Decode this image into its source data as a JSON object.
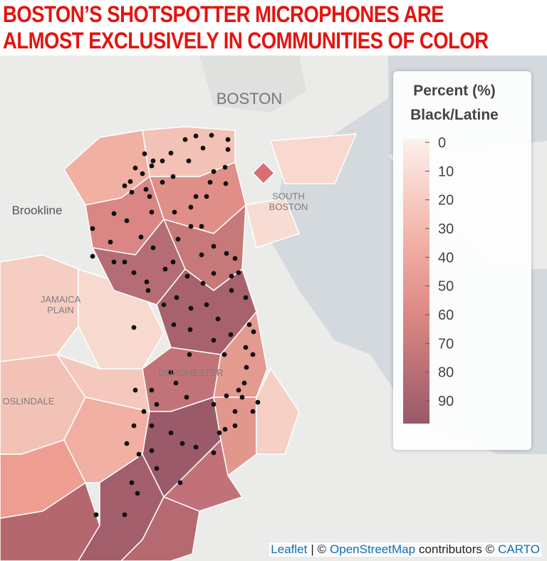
{
  "header": {
    "title": [
      "BOSTON’S SHOTSPOTTER MICROPHONES ARE",
      "ALMOST EXCLUSIVELY IN COMMUNITIES OF COLOR"
    ]
  },
  "map": {
    "place_labels": [
      [
        "BOSTON"
      ],
      [
        "SOUTH",
        "BOSTON"
      ],
      [
        "Brookline"
      ],
      [
        "JAMAICA",
        "PLAIN"
      ],
      [
        "DORCHESTER"
      ],
      [
        "OSLINDALE"
      ]
    ]
  },
  "legend": {
    "title": [
      "Percent (%)",
      "Black/Latine"
    ],
    "ticks": [
      0,
      10,
      20,
      30,
      40,
      50,
      60,
      70,
      80,
      90
    ]
  },
  "attribution": [
    "Leaflet",
    "| ©",
    "OpenStreetMap",
    "contributors ©",
    "CARTO"
  ]
}
